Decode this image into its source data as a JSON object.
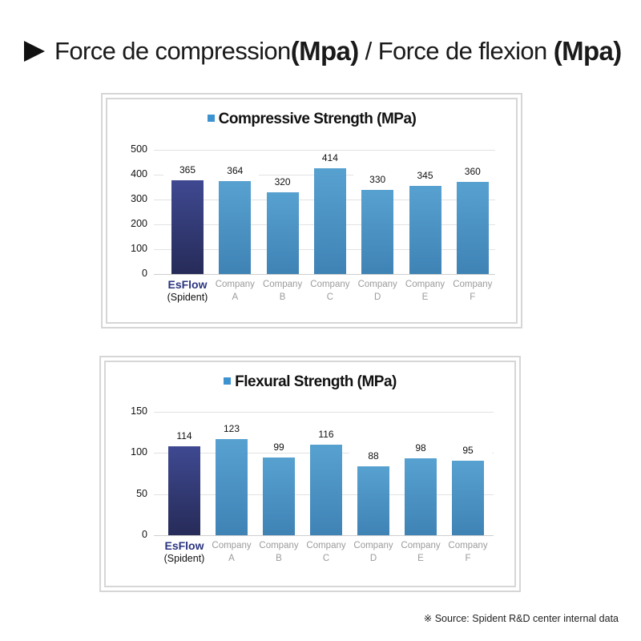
{
  "heading": {
    "icon": "play-triangle-icon",
    "part1": "Force de compression",
    "part2": "(Mpa)",
    "sep": " / Force de flexion ",
    "part3": "(Mpa)"
  },
  "colors": {
    "esflow_bar": "#3f4991",
    "company_bar": "#4a92c4",
    "esflow_label": "#2b3580",
    "company_label": "#9b9b9b",
    "legend_swatch": "#3d93cf"
  },
  "chart_data": [
    {
      "type": "bar",
      "title": "Compressive Strength (MPa)",
      "legend": [
        "Compressive Strength (MPa)"
      ],
      "legend_position": "top",
      "xlabel": "",
      "ylabel": "",
      "ylim": [
        0,
        500
      ],
      "yticks": [
        "0",
        "100",
        "200",
        "300",
        "400",
        "500"
      ],
      "grid": true,
      "categories": [
        "EsFlow (Spident)",
        "Company A",
        "Company B",
        "Company C",
        "Company D",
        "Company E",
        "Company F"
      ],
      "category_lines": [
        [
          "EsFlow",
          "(Spident)"
        ],
        [
          "Company",
          "A"
        ],
        [
          "Company",
          "B"
        ],
        [
          "Company",
          "C"
        ],
        [
          "Company",
          "D"
        ],
        [
          "Company",
          "E"
        ],
        [
          "Company",
          "F"
        ]
      ],
      "values": [
        365,
        364,
        320,
        414,
        330,
        345,
        360
      ],
      "value_labels": [
        "365",
        "364",
        "320",
        "414",
        "330",
        "345",
        "360"
      ]
    },
    {
      "type": "bar",
      "title": "Flexural Strength (MPa)",
      "legend": [
        "Flexural Strength (MPa)"
      ],
      "legend_position": "top",
      "xlabel": "",
      "ylabel": "",
      "ylim": [
        0,
        150
      ],
      "yticks": [
        "0",
        "50",
        "100",
        "150"
      ],
      "grid": true,
      "categories": [
        "EsFlow (Spident)",
        "Company A",
        "Company B",
        "Company C",
        "Company D",
        "Company E",
        "Company F"
      ],
      "category_lines": [
        [
          "EsFlow",
          "(Spident)"
        ],
        [
          "Company",
          "A"
        ],
        [
          "Company",
          "B"
        ],
        [
          "Company",
          "C"
        ],
        [
          "Company",
          "D"
        ],
        [
          "Company",
          "E"
        ],
        [
          "Company",
          "F"
        ]
      ],
      "values": [
        114,
        123,
        99,
        116,
        88,
        98,
        95
      ],
      "value_labels": [
        "114",
        "123",
        "99",
        "116",
        "88",
        "98",
        "95"
      ]
    }
  ],
  "footer": {
    "source": "※ Source: Spident R&D center internal data"
  }
}
